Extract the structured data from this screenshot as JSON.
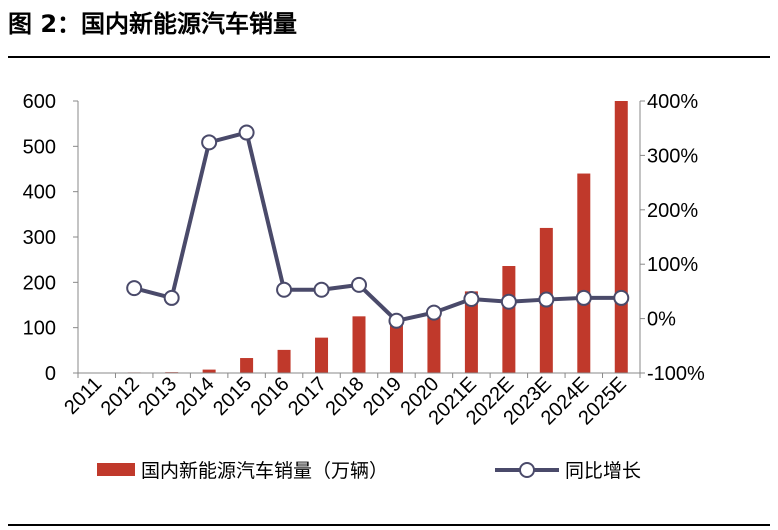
{
  "header": {
    "title": "图 2：国内新能源汽车销量"
  },
  "colors": {
    "bar": "#C0392B",
    "line": "#4A4A6A",
    "marker_fill": "#FFFFFF",
    "axis": "#888888"
  },
  "chart_data": {
    "type": "bar",
    "categories": [
      "2011",
      "2012",
      "2013",
      "2014",
      "2015",
      "2016",
      "2017",
      "2018",
      "2019",
      "2020",
      "2021E",
      "2022E",
      "2023E",
      "2024E",
      "2025E"
    ],
    "y_left": {
      "lim": [
        0,
        600
      ],
      "ticks": [
        0,
        100,
        200,
        300,
        400,
        500,
        600
      ],
      "tick_labels": [
        "0",
        "100",
        "200",
        "300",
        "400",
        "500",
        "600"
      ]
    },
    "y_right": {
      "lim": [
        -100,
        400
      ],
      "ticks": [
        -100,
        0,
        100,
        200,
        300,
        400
      ],
      "tick_labels": [
        "-100%",
        "0%",
        "100%",
        "200%",
        "300%",
        "400%"
      ]
    },
    "grid": false,
    "legend_position": "bottom",
    "series": [
      {
        "name": "国内新能源汽车销量（万辆）",
        "type": "bar",
        "axis": "left",
        "values": [
          0.8,
          1.3,
          1.8,
          7.5,
          33,
          51,
          78,
          125,
          121,
          137,
          180,
          236,
          320,
          440,
          600
        ]
      },
      {
        "name": "同比增长",
        "type": "line",
        "axis": "right",
        "values": [
          null,
          56,
          38,
          324,
          342,
          53,
          53,
          62,
          -4,
          11,
          36,
          31,
          35,
          38,
          38
        ]
      }
    ]
  }
}
